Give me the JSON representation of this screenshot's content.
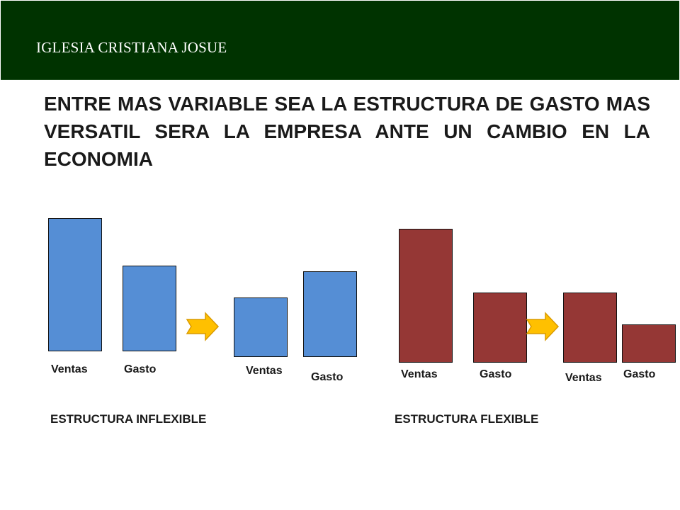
{
  "header": {
    "title": "IGLESIA CRISTIANA JOSUE",
    "background": "#003300"
  },
  "headline": "ENTRE MAS VARIABLE SEA LA ESTRUCTURA DE GASTO MAS VERSATIL SERA LA EMPRESA ANTE UN CAMBIO EN LA ECONOMIA",
  "colors": {
    "inflexible_bars": "#558ed5",
    "flexible_bars": "#953735",
    "arrow": "#ffc000"
  },
  "inflexible": {
    "caption": "ESTRUCTURA INFLEXIBLE",
    "before": {
      "ventas_label": "Ventas",
      "gasto_label": "Gasto"
    },
    "after": {
      "ventas_label": "Ventas",
      "gasto_label": "Gasto"
    },
    "arrow_icon": "right-arrow-icon"
  },
  "flexible": {
    "caption": "ESTRUCTURA FLEXIBLE",
    "before": {
      "ventas_label": "Ventas",
      "gasto_label": "Gasto"
    },
    "after": {
      "ventas_label": "Ventas",
      "gasto_label": "Gasto"
    },
    "arrow_icon": "right-arrow-icon"
  }
}
